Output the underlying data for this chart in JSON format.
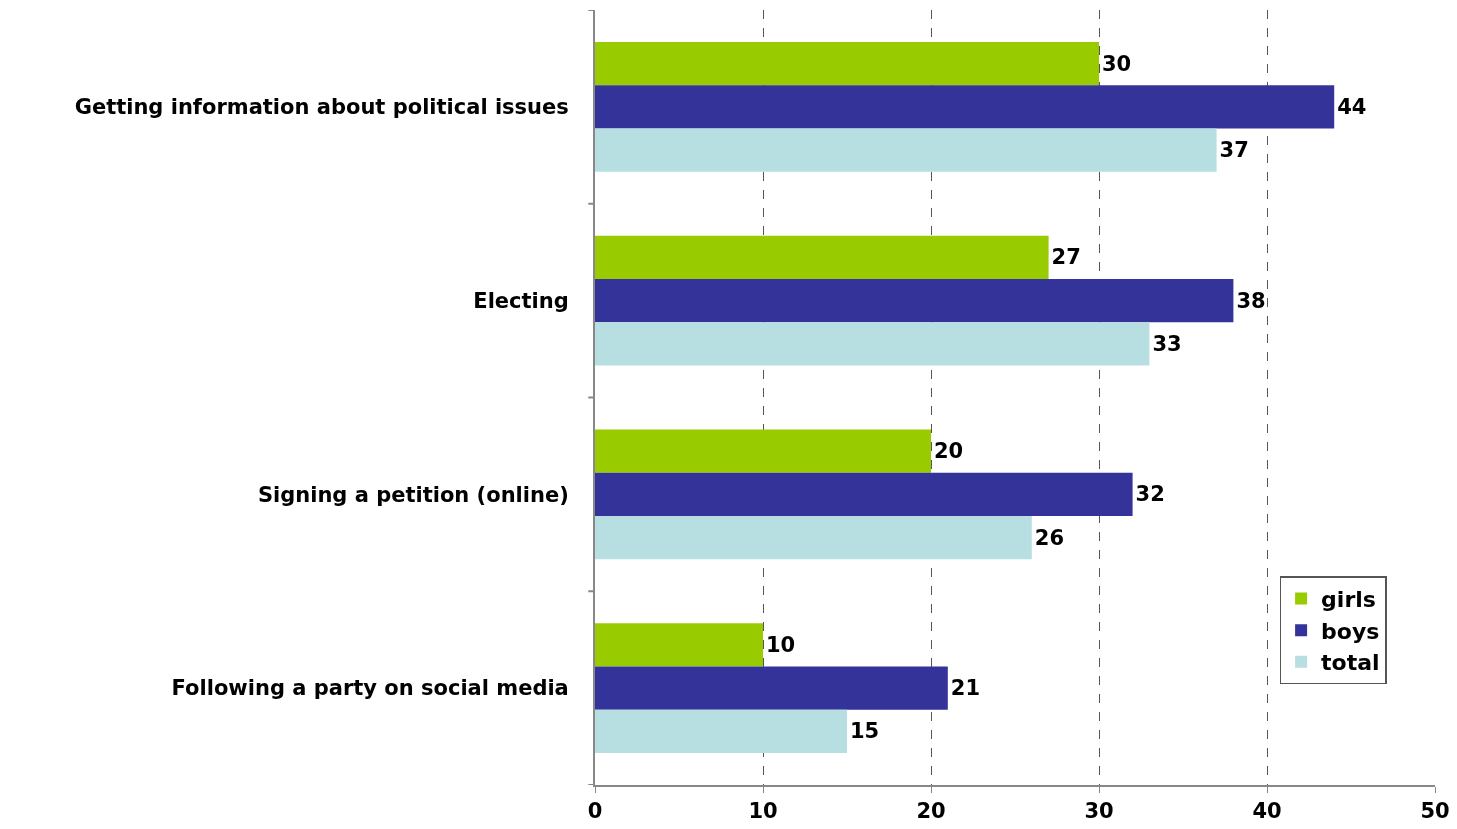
{
  "chart_data": {
    "type": "bar",
    "orientation": "horizontal",
    "categories": [
      "Getting information about political issues",
      "Electing",
      "Signing a petition (online)",
      "Following a party on social media"
    ],
    "series": [
      {
        "name": "girls",
        "color": "#99cc00",
        "values": [
          30,
          27,
          20,
          10
        ]
      },
      {
        "name": "boys",
        "color": "#333399",
        "values": [
          44,
          38,
          32,
          21
        ]
      },
      {
        "name": "total",
        "color": "#b7dfe2",
        "values": [
          37,
          33,
          26,
          15
        ]
      }
    ],
    "xlim": [
      0,
      50
    ],
    "xticks": [
      0,
      10,
      20,
      30,
      40,
      50
    ],
    "grid": "x",
    "legend": "bottom right",
    "data_labels": true
  }
}
